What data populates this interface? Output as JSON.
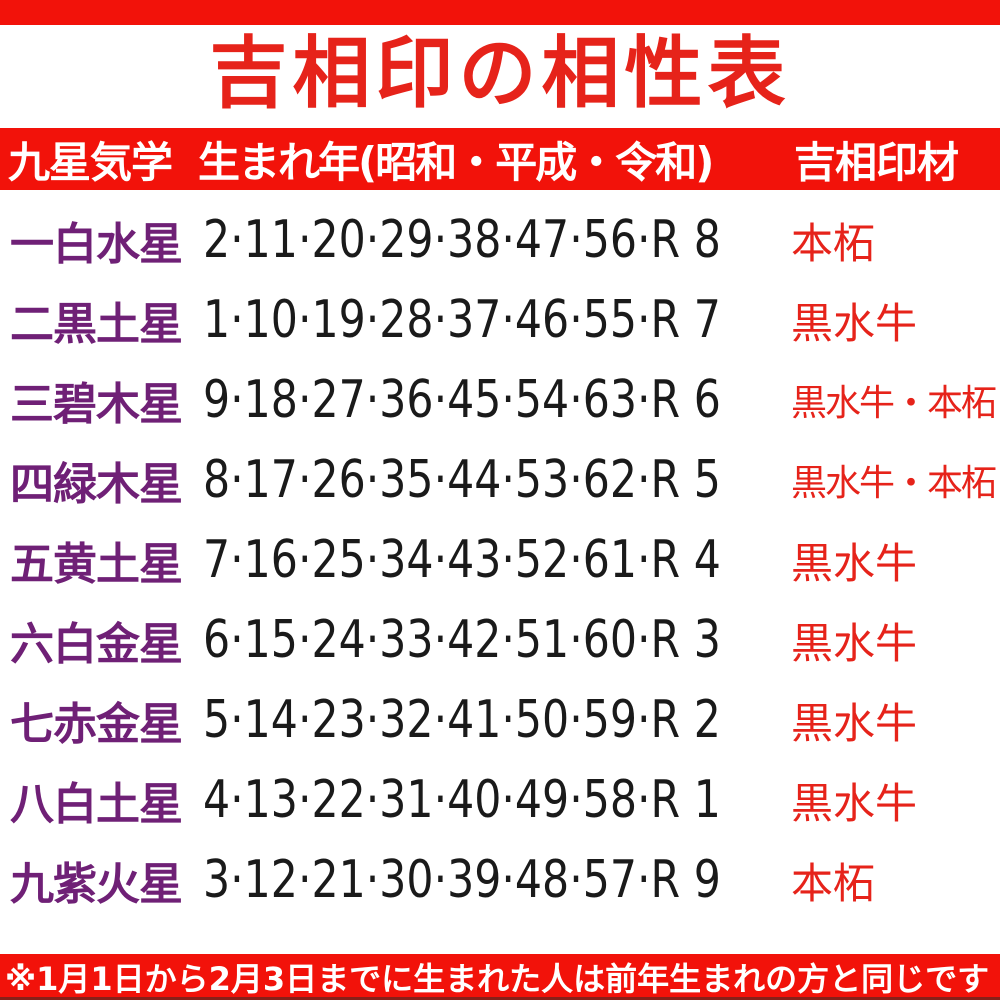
{
  "title": "吉相印の相性表",
  "header": {
    "star": "九星気学",
    "year": "生まれ年(昭和・平成・令和)",
    "material": "吉相印材"
  },
  "chart_data": {
    "type": "table",
    "title": "吉相印の相性表",
    "columns": [
      "九星気学",
      "生まれ年(昭和・平成・令和)",
      "吉相印材"
    ],
    "rows": [
      [
        "一白水星",
        "2·11·20·29·38·47·56·R 8",
        "本柘"
      ],
      [
        "二黒土星",
        "1·10·19·28·37·46·55·R 7",
        "黒水牛"
      ],
      [
        "三碧木星",
        "9·18·27·36·45·54·63·R 6",
        "黒水牛・本柘"
      ],
      [
        "四緑木星",
        "8·17·26·35·44·53·62·R 5",
        "黒水牛・本柘"
      ],
      [
        "五黄土星",
        "7·16·25·34·43·52·61·R 4",
        "黒水牛"
      ],
      [
        "六白金星",
        "6·15·24·33·42·51·60·R 3",
        "黒水牛"
      ],
      [
        "七赤金星",
        "5·14·23·32·41·50·59·R 2",
        "黒水牛"
      ],
      [
        "八白土星",
        "4·13·22·31·40·49·58·R 1",
        "黒水牛"
      ],
      [
        "九紫火星",
        "3·12·21·30·39·48·57·R 9",
        "本柘"
      ]
    ],
    "footnote": "※1月1日から2月3日までに生まれた人は前年生まれの方と同じです"
  },
  "footer": {
    "note": "※1月1日から2月3日までに生まれた人は前年生まれの方と同じです"
  },
  "colors": {
    "bar_red": "#f2120a",
    "text_red": "#e6231a",
    "purple": "#6f2076",
    "number_black": "#1a1a1a"
  }
}
